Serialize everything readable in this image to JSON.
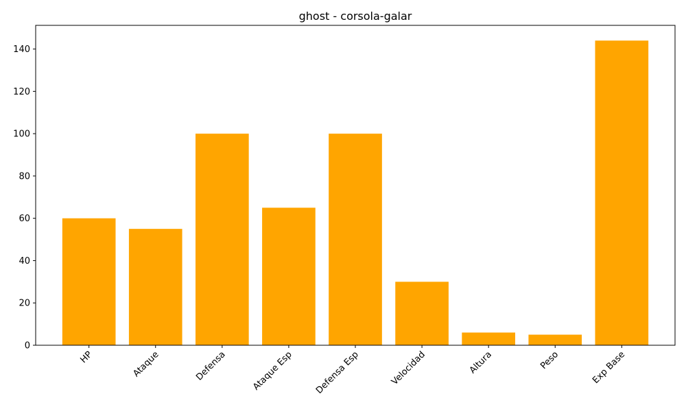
{
  "chart_data": {
    "type": "bar",
    "title": "ghost - corsola-galar",
    "xlabel": "",
    "ylabel": "",
    "categories": [
      "HP",
      "Ataque",
      "Defensa",
      "Ataque Esp",
      "Defensa Esp",
      "Velocidad",
      "Altura",
      "Peso",
      "Exp Base"
    ],
    "values": [
      60,
      55,
      100,
      65,
      100,
      30,
      6,
      5,
      144
    ],
    "ylim": [
      0,
      151.2
    ],
    "yticks": [
      0,
      20,
      40,
      60,
      80,
      100,
      120,
      140
    ],
    "bar_color": "#ffa500",
    "grid": false,
    "legend": "none"
  }
}
